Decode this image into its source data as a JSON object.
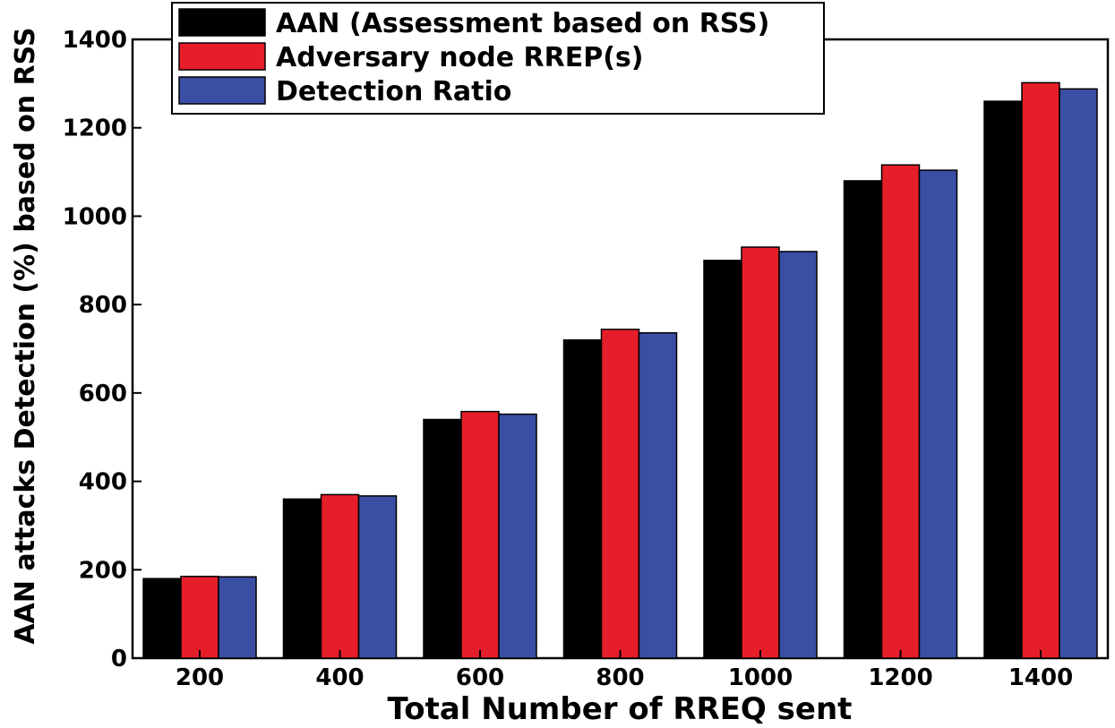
{
  "chart_data": {
    "type": "bar",
    "xlabel": "Total Number of RREQ sent",
    "ylabel": "AAN attacks Detection (%) based on RSS",
    "categories": [
      "200",
      "400",
      "600",
      "800",
      "1000",
      "1200",
      "1400"
    ],
    "ylim": [
      0,
      1400
    ],
    "yticks": [
      "0",
      "200",
      "400",
      "600",
      "800",
      "1000",
      "1200",
      "1400"
    ],
    "grid": false,
    "legend_position": "top-center",
    "series": [
      {
        "name": "AAN (Assessment based on RSS)",
        "color": "#000000",
        "values": [
          180,
          360,
          540,
          720,
          900,
          1080,
          1260
        ]
      },
      {
        "name": "Adversary node RREP(s)",
        "color": "#e61e2a",
        "values": [
          185,
          370,
          558,
          744,
          930,
          1116,
          1302
        ]
      },
      {
        "name": "Detection Ratio",
        "color": "#3a4fa3",
        "values": [
          184,
          367,
          552,
          736,
          920,
          1104,
          1288
        ]
      }
    ]
  }
}
